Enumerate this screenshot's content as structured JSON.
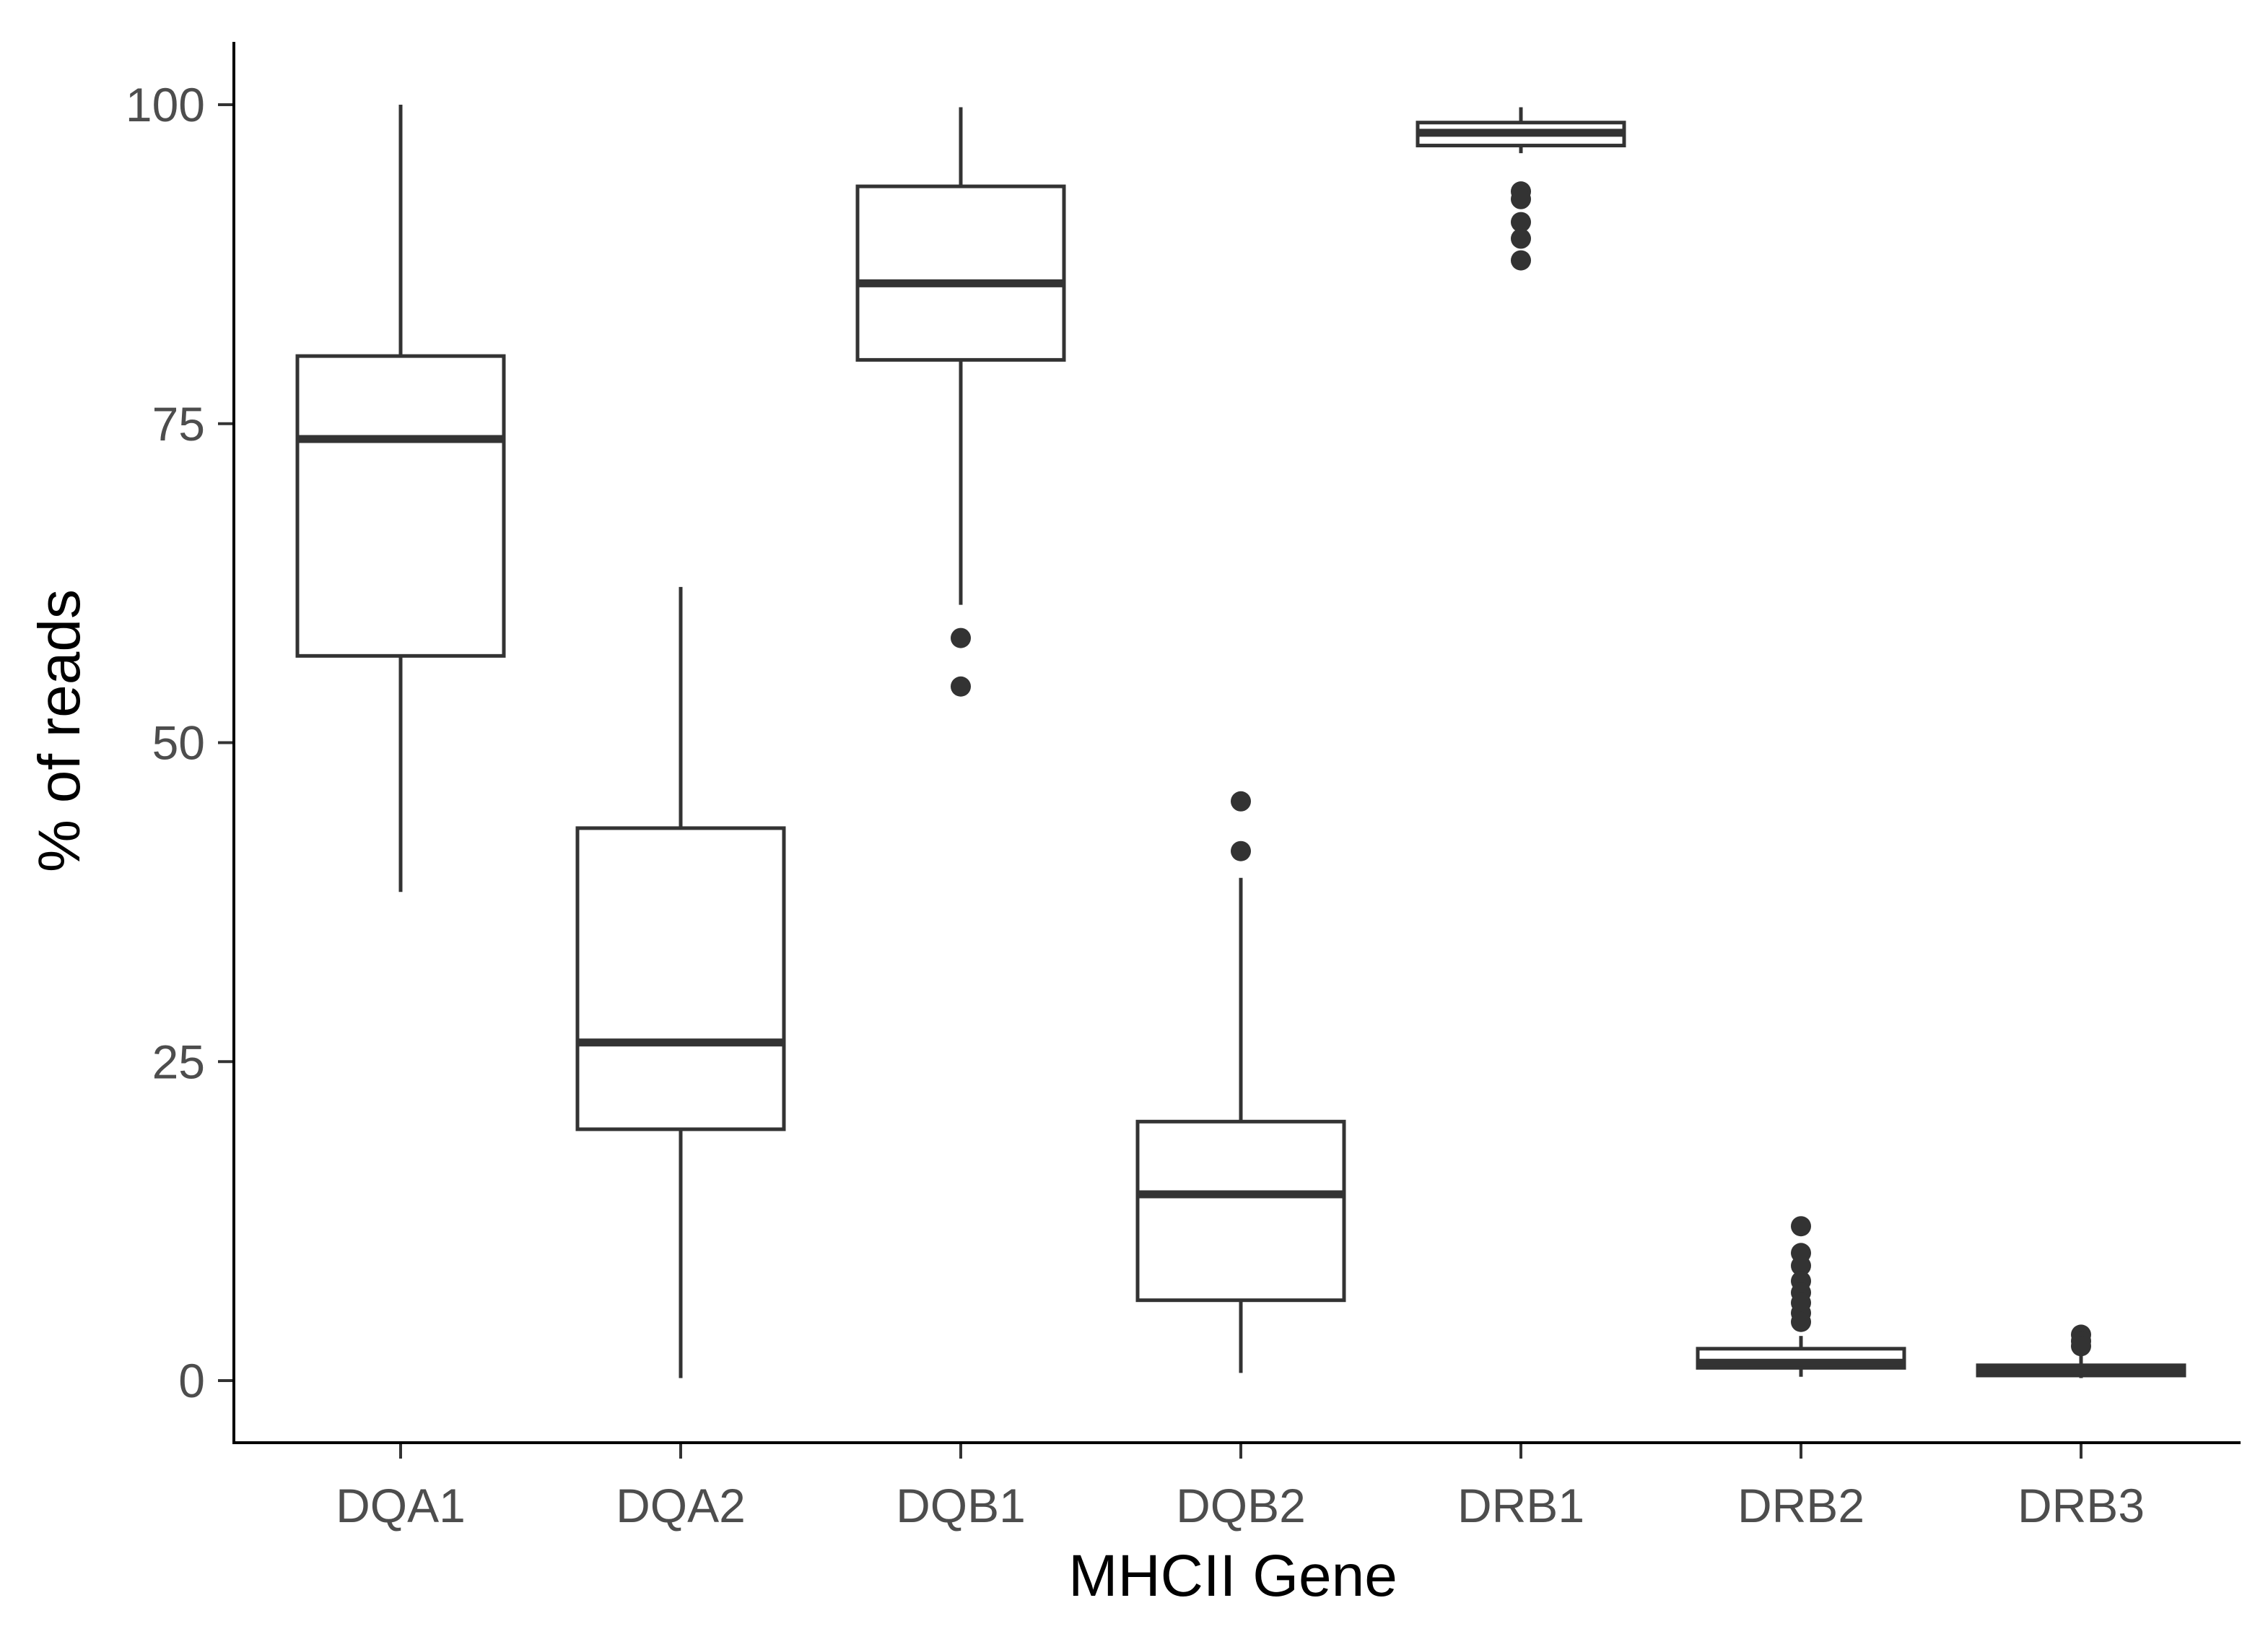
{
  "chart_data": {
    "type": "box",
    "title": "",
    "xlabel": "MHCII Gene",
    "ylabel": "% of reads",
    "ylim": [
      -5,
      105
    ],
    "yticks": [
      0,
      25,
      50,
      75,
      100
    ],
    "ytick_labels": [
      "0",
      "25",
      "50",
      "75",
      "100"
    ],
    "grid": false,
    "box_fill": "#ffffff",
    "line_color": "#333333",
    "categories": [
      "DQA1",
      "DQA2",
      "DQB1",
      "DQB2",
      "DRB1",
      "DRB2",
      "DRB3"
    ],
    "boxes": [
      {
        "category": "DQA1",
        "whisker_low": 38.3,
        "q1": 56.8,
        "median": 73.8,
        "q3": 80.3,
        "whisker_high": 100.0,
        "outliers": []
      },
      {
        "category": "DQA2",
        "whisker_low": 0.2,
        "q1": 19.7,
        "median": 26.5,
        "q3": 43.3,
        "whisker_high": 62.2,
        "outliers": []
      },
      {
        "category": "DQB1",
        "whisker_low": 60.8,
        "q1": 80.0,
        "median": 86.0,
        "q3": 93.6,
        "whisker_high": 99.8,
        "outliers": [
          58.2,
          54.4
        ]
      },
      {
        "category": "DQB2",
        "whisker_low": 0.6,
        "q1": 6.3,
        "median": 14.6,
        "q3": 20.3,
        "whisker_high": 39.4,
        "outliers": [
          45.4,
          41.5
        ]
      },
      {
        "category": "DRB1",
        "whisker_low": 96.2,
        "q1": 96.8,
        "median": 97.8,
        "q3": 98.6,
        "whisker_high": 99.8,
        "outliers": [
          93.2,
          92.6,
          90.8,
          89.5,
          87.8
        ]
      },
      {
        "category": "DRB2",
        "whisker_low": 0.3,
        "q1": 1.0,
        "median": 1.4,
        "q3": 2.5,
        "whisker_high": 3.5,
        "outliers": [
          12.1,
          10.0,
          9.0,
          7.8,
          6.9,
          6.1,
          5.3,
          4.6
        ]
      },
      {
        "category": "DRB3",
        "whisker_low": 0.2,
        "q1": 0.4,
        "median": 0.8,
        "q3": 1.2,
        "whisker_high": 2.0,
        "outliers": [
          3.6,
          3.1,
          2.7
        ]
      }
    ]
  }
}
